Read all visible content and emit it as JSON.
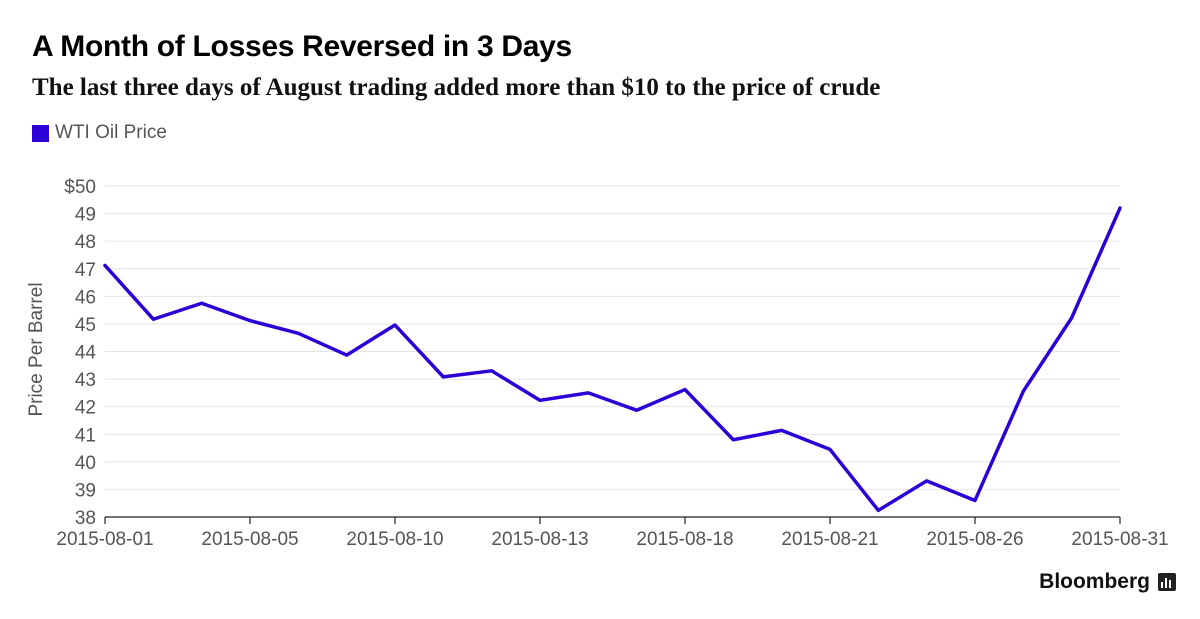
{
  "header": {
    "title": "A Month of Losses Reversed in 3 Days",
    "subtitle": "The last three days of August trading added more than $10 to the price of crude"
  },
  "brand": {
    "name": "Bloomberg",
    "icon": "bar-chart-icon"
  },
  "colors": {
    "series": "#2a00d6",
    "grid": "#e4e4e4",
    "axis_text": "#555555"
  },
  "chart_data": {
    "type": "line",
    "ylabel": "Price Per Barrel",
    "xlabel": "",
    "ylim": [
      38,
      50
    ],
    "y_ticks": [
      38,
      39,
      40,
      41,
      42,
      43,
      44,
      45,
      46,
      47,
      48,
      49,
      50
    ],
    "y_tick_labels": [
      "38",
      "39",
      "40",
      "41",
      "42",
      "43",
      "44",
      "45",
      "46",
      "47",
      "48",
      "49",
      "$50"
    ],
    "x_tick_labels": [
      "2015-08-01",
      "2015-08-05",
      "2015-08-10",
      "2015-08-13",
      "2015-08-18",
      "2015-08-21",
      "2015-08-26",
      "2015-08-31"
    ],
    "grid": true,
    "legend": "top-left",
    "series": [
      {
        "name": "WTI Oil Price",
        "values": [
          47.12,
          45.17,
          45.75,
          45.12,
          44.66,
          43.87,
          44.96,
          43.08,
          43.3,
          42.23,
          42.5,
          41.87,
          42.62,
          40.8,
          41.14,
          40.45,
          38.24,
          39.31,
          38.6,
          42.56,
          45.22,
          49.2
        ]
      }
    ]
  }
}
